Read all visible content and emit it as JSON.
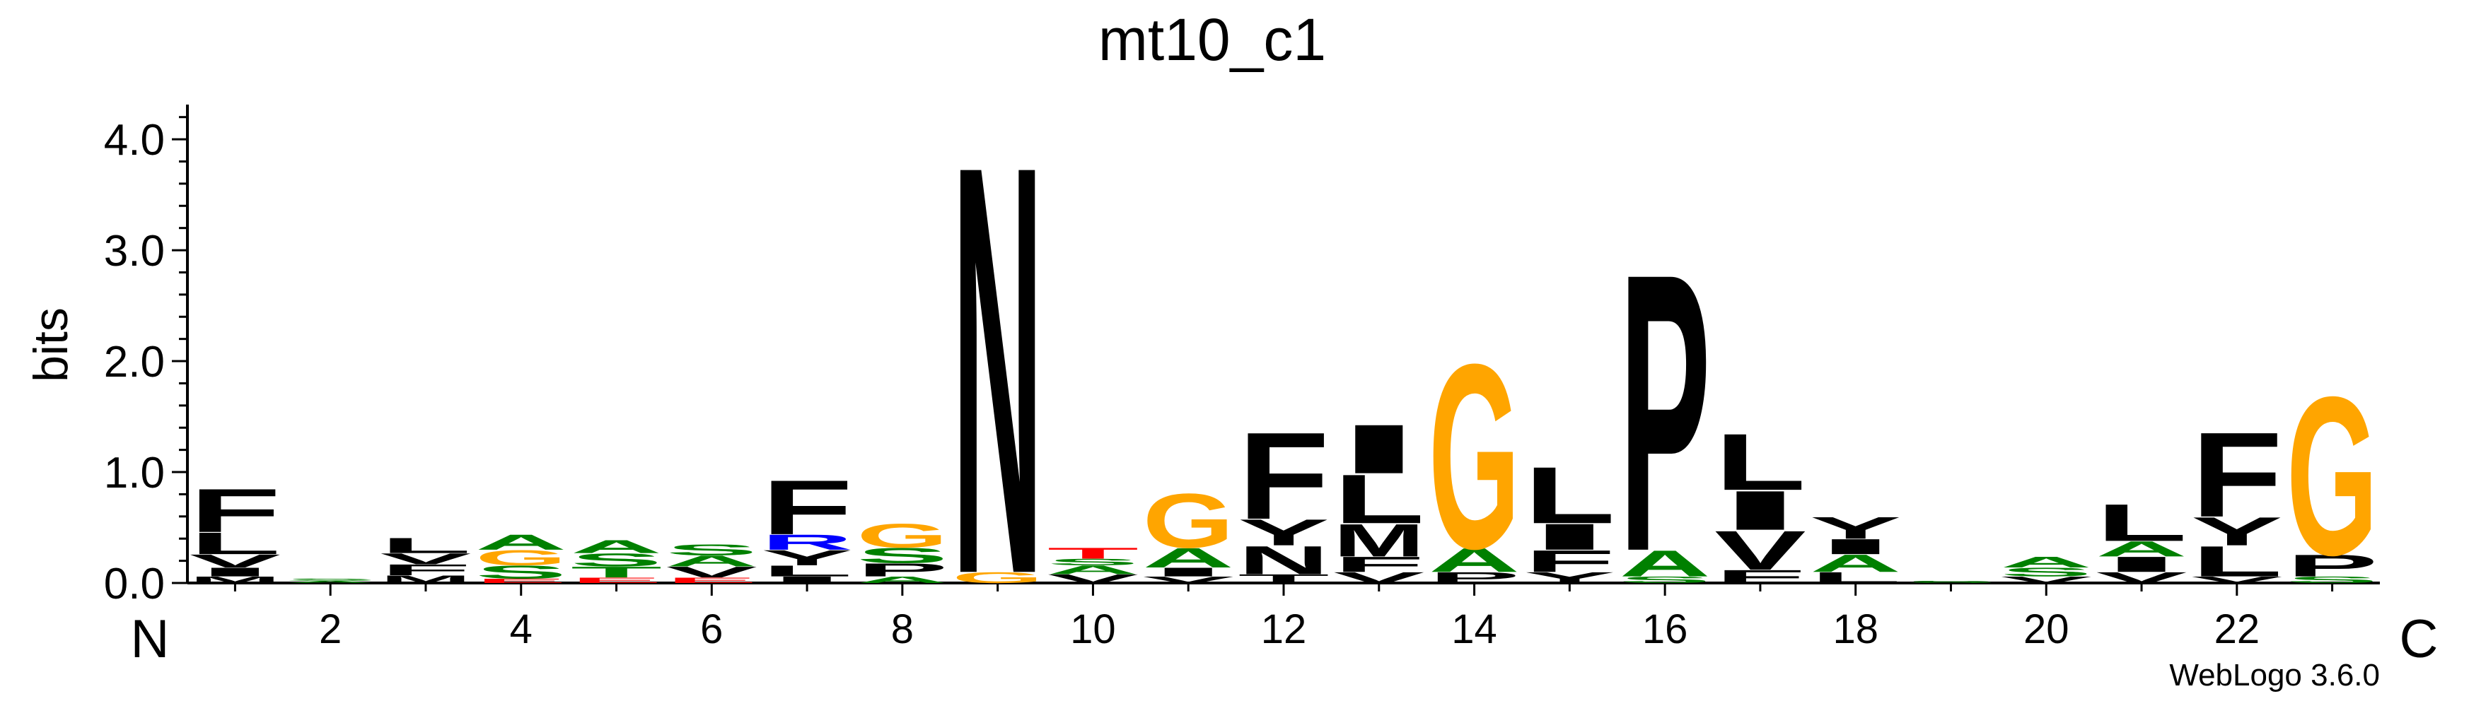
{
  "chart_data": {
    "type": "sequence-logo",
    "title": "mt10_c1",
    "ylabel": "bits",
    "xlabel": "",
    "ylim": [
      0,
      4.3
    ],
    "y_ticks": [
      "0.0",
      "1.0",
      "2.0",
      "3.0",
      "4.0"
    ],
    "y_tick_values": [
      0,
      1,
      2,
      3,
      4
    ],
    "x_ticks": [
      "2",
      "4",
      "6",
      "8",
      "10",
      "12",
      "14",
      "16",
      "18",
      "20",
      "22"
    ],
    "x_tick_values": [
      2,
      4,
      6,
      8,
      10,
      12,
      14,
      16,
      18,
      20,
      22
    ],
    "n_label": "N",
    "c_label": "C",
    "footer": "WebLogo 3.6.0",
    "grid": false,
    "colors": {
      "hydrophobic": "#000000",
      "polar": "#008000",
      "acidic": "#ff0000",
      "basic": "#0000ff",
      "special": "#ffa500"
    },
    "positions": [
      {
        "pos": 1,
        "letters": [
          {
            "l": "M",
            "h": 0.06,
            "c": "#000000"
          },
          {
            "l": "I",
            "h": 0.08,
            "c": "#000000"
          },
          {
            "l": "V",
            "h": 0.12,
            "c": "#000000"
          },
          {
            "l": "L",
            "h": 0.2,
            "c": "#000000"
          },
          {
            "l": "F",
            "h": 0.4,
            "c": "#000000"
          }
        ]
      },
      {
        "pos": 2,
        "letters": [
          {
            "l": "A",
            "h": 0.02,
            "c": "#008000"
          },
          {
            "l": "S",
            "h": 0.02,
            "c": "#008000"
          }
        ]
      },
      {
        "pos": 3,
        "letters": [
          {
            "l": "M",
            "h": 0.07,
            "c": "#000000"
          },
          {
            "l": "F",
            "h": 0.1,
            "c": "#000000"
          },
          {
            "l": "V",
            "h": 0.1,
            "c": "#000000"
          },
          {
            "l": "L",
            "h": 0.14,
            "c": "#000000"
          }
        ]
      },
      {
        "pos": 4,
        "letters": [
          {
            "l": "E",
            "h": 0.04,
            "c": "#ff0000"
          },
          {
            "l": "S",
            "h": 0.12,
            "c": "#008000"
          },
          {
            "l": "G",
            "h": 0.14,
            "c": "#ffa500"
          },
          {
            "l": "A",
            "h": 0.14,
            "c": "#008000"
          }
        ]
      },
      {
        "pos": 5,
        "letters": [
          {
            "l": "E",
            "h": 0.05,
            "c": "#ff0000"
          },
          {
            "l": "T",
            "h": 0.1,
            "c": "#008000"
          },
          {
            "l": "S",
            "h": 0.12,
            "c": "#008000"
          },
          {
            "l": "A",
            "h": 0.12,
            "c": "#008000"
          }
        ]
      },
      {
        "pos": 6,
        "letters": [
          {
            "l": "E",
            "h": 0.05,
            "c": "#ff0000"
          },
          {
            "l": "V",
            "h": 0.1,
            "c": "#000000"
          },
          {
            "l": "A",
            "h": 0.1,
            "c": "#008000"
          },
          {
            "l": "S",
            "h": 0.1,
            "c": "#008000"
          }
        ]
      },
      {
        "pos": 7,
        "letters": [
          {
            "l": "I",
            "h": 0.06,
            "c": "#000000"
          },
          {
            "l": "L",
            "h": 0.1,
            "c": "#000000"
          },
          {
            "l": "Y",
            "h": 0.14,
            "c": "#000000"
          },
          {
            "l": "R",
            "h": 0.14,
            "c": "#0000ff"
          },
          {
            "l": "F",
            "h": 0.5,
            "c": "#000000"
          }
        ]
      },
      {
        "pos": 8,
        "letters": [
          {
            "l": "A",
            "h": 0.06,
            "c": "#008000"
          },
          {
            "l": "P",
            "h": 0.12,
            "c": "#000000"
          },
          {
            "l": "S",
            "h": 0.14,
            "c": "#008000"
          },
          {
            "l": "G",
            "h": 0.22,
            "c": "#ffa500"
          }
        ]
      },
      {
        "pos": 9,
        "letters": [
          {
            "l": "G",
            "h": 0.1,
            "c": "#ffa500"
          },
          {
            "l": "N",
            "h": 3.77,
            "c": "#000000"
          }
        ]
      },
      {
        "pos": 10,
        "letters": [
          {
            "l": "V",
            "h": 0.08,
            "c": "#000000"
          },
          {
            "l": "A",
            "h": 0.08,
            "c": "#008000"
          },
          {
            "l": "S",
            "h": 0.06,
            "c": "#008000"
          },
          {
            "l": "T",
            "h": 0.1,
            "c": "#ff0000"
          }
        ]
      },
      {
        "pos": 11,
        "letters": [
          {
            "l": "V",
            "h": 0.06,
            "c": "#000000"
          },
          {
            "l": "I",
            "h": 0.08,
            "c": "#000000"
          },
          {
            "l": "A",
            "h": 0.18,
            "c": "#008000"
          },
          {
            "l": "G",
            "h": 0.5,
            "c": "#ffa500"
          }
        ]
      },
      {
        "pos": 12,
        "letters": [
          {
            "l": "T",
            "h": 0.08,
            "c": "#000000"
          },
          {
            "l": "N",
            "h": 0.26,
            "c": "#000000"
          },
          {
            "l": "Y",
            "h": 0.24,
            "c": "#000000"
          },
          {
            "l": "F",
            "h": 0.8,
            "c": "#000000"
          }
        ]
      },
      {
        "pos": 13,
        "letters": [
          {
            "l": "V",
            "h": 0.1,
            "c": "#000000"
          },
          {
            "l": "F",
            "h": 0.14,
            "c": "#000000"
          },
          {
            "l": "M",
            "h": 0.3,
            "c": "#000000"
          },
          {
            "l": "L",
            "h": 0.45,
            "c": "#000000"
          },
          {
            "l": "I",
            "h": 0.45,
            "c": "#000000"
          }
        ]
      },
      {
        "pos": 14,
        "letters": [
          {
            "l": "P",
            "h": 0.1,
            "c": "#000000"
          },
          {
            "l": "A",
            "h": 0.22,
            "c": "#008000"
          },
          {
            "l": "G",
            "h": 1.7,
            "c": "#ffa500"
          }
        ]
      },
      {
        "pos": 15,
        "letters": [
          {
            "l": "Y",
            "h": 0.1,
            "c": "#000000"
          },
          {
            "l": "F",
            "h": 0.2,
            "c": "#000000"
          },
          {
            "l": "I",
            "h": 0.24,
            "c": "#000000"
          },
          {
            "l": "L",
            "h": 0.52,
            "c": "#000000"
          }
        ]
      },
      {
        "pos": 16,
        "letters": [
          {
            "l": "S",
            "h": 0.06,
            "c": "#008000"
          },
          {
            "l": "A",
            "h": 0.24,
            "c": "#008000"
          },
          {
            "l": "P",
            "h": 2.56,
            "c": "#000000"
          }
        ]
      },
      {
        "pos": 17,
        "letters": [
          {
            "l": "F",
            "h": 0.12,
            "c": "#000000"
          },
          {
            "l": "V",
            "h": 0.36,
            "c": "#000000"
          },
          {
            "l": "I",
            "h": 0.36,
            "c": "#000000"
          },
          {
            "l": "L",
            "h": 0.52,
            "c": "#000000"
          }
        ]
      },
      {
        "pos": 18,
        "letters": [
          {
            "l": "L",
            "h": 0.1,
            "c": "#000000"
          },
          {
            "l": "A",
            "h": 0.16,
            "c": "#008000"
          },
          {
            "l": "I",
            "h": 0.14,
            "c": "#000000"
          },
          {
            "l": "Y",
            "h": 0.2,
            "c": "#000000"
          }
        ]
      },
      {
        "pos": 19,
        "letters": [
          {
            "l": "S",
            "h": 0.02,
            "c": "#008000"
          }
        ]
      },
      {
        "pos": 20,
        "letters": [
          {
            "l": "V",
            "h": 0.06,
            "c": "#000000"
          },
          {
            "l": "S",
            "h": 0.08,
            "c": "#008000"
          },
          {
            "l": "A",
            "h": 0.1,
            "c": "#008000"
          }
        ]
      },
      {
        "pos": 21,
        "letters": [
          {
            "l": "V",
            "h": 0.1,
            "c": "#000000"
          },
          {
            "l": "I",
            "h": 0.14,
            "c": "#000000"
          },
          {
            "l": "A",
            "h": 0.14,
            "c": "#008000"
          },
          {
            "l": "L",
            "h": 0.34,
            "c": "#000000"
          }
        ]
      },
      {
        "pos": 22,
        "letters": [
          {
            "l": "V",
            "h": 0.06,
            "c": "#000000"
          },
          {
            "l": "L",
            "h": 0.28,
            "c": "#000000"
          },
          {
            "l": "Y",
            "h": 0.26,
            "c": "#000000"
          },
          {
            "l": "F",
            "h": 0.78,
            "c": "#000000"
          }
        ]
      },
      {
        "pos": 23,
        "letters": [
          {
            "l": "S",
            "h": 0.06,
            "c": "#008000"
          },
          {
            "l": "P",
            "h": 0.2,
            "c": "#000000"
          },
          {
            "l": "G",
            "h": 1.46,
            "c": "#ffa500"
          }
        ]
      }
    ]
  }
}
